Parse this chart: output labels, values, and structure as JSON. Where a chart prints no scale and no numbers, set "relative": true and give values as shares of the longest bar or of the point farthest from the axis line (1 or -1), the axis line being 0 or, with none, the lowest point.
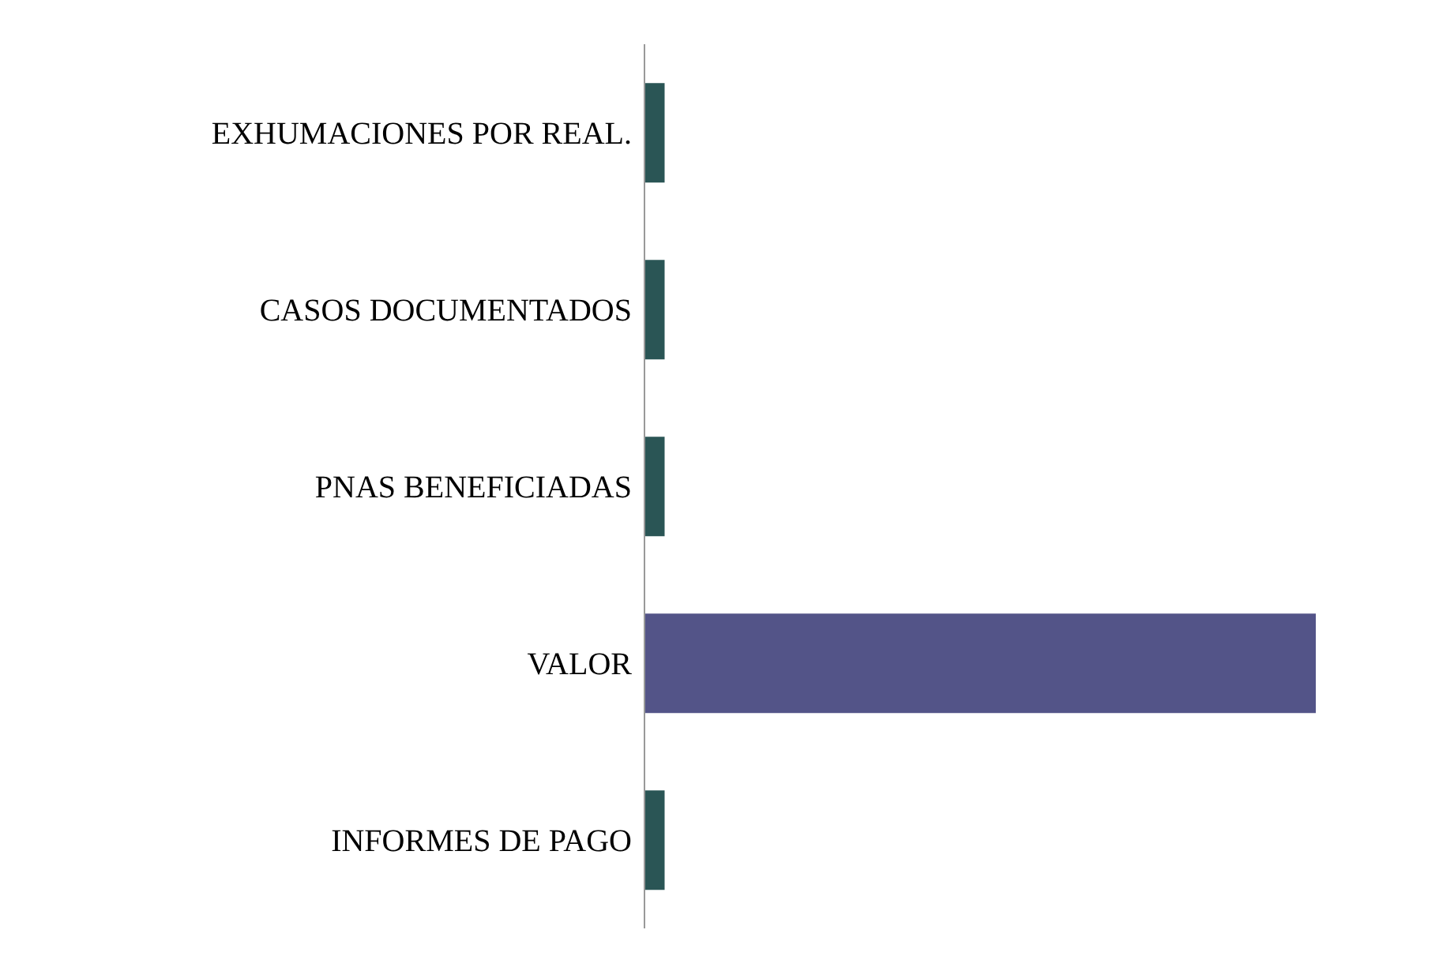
{
  "chart_data": {
    "type": "bar",
    "orientation": "horizontal",
    "relative": true,
    "categories": [
      "EXHUMACIONES POR REAL.",
      "CASOS DOCUMENTADOS",
      "PNAS BENEFICIADAS",
      "VALOR",
      "INFORMES DE PAGO"
    ],
    "values": [
      0.03,
      0.03,
      0.03,
      1,
      0.03
    ],
    "colors": [
      "#2a5555",
      "#2a5555",
      "#2a5555",
      "#535488",
      "#2a5555"
    ]
  }
}
